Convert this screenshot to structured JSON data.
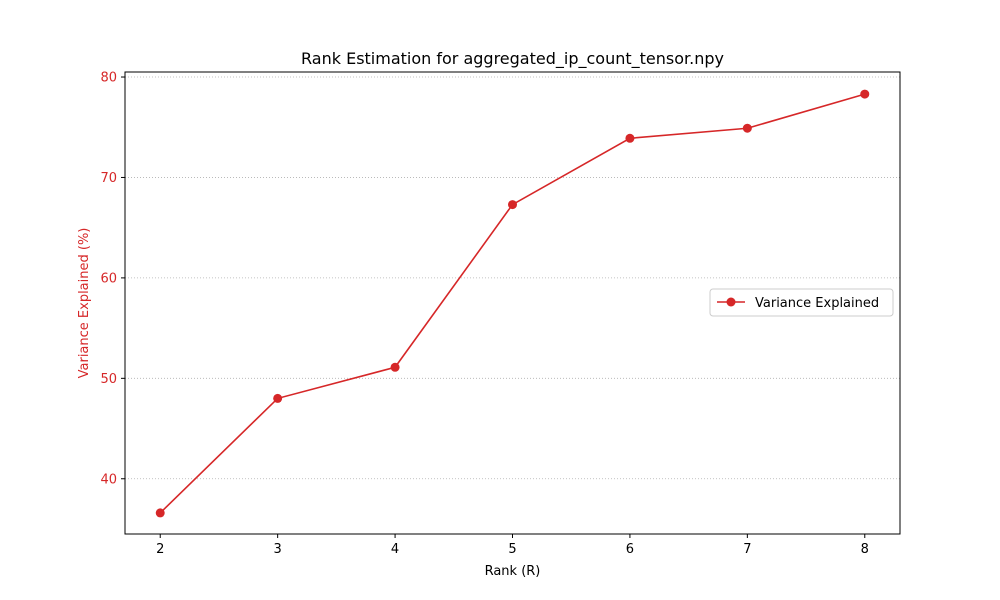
{
  "chart_data": {
    "type": "line",
    "title": "Rank Estimation for aggregated_ip_count_tensor.npy",
    "xlabel": "Rank (R)",
    "ylabel": "Variance Explained (%)",
    "x": [
      2,
      3,
      4,
      5,
      6,
      7,
      8
    ],
    "series": [
      {
        "name": "Variance Explained",
        "values": [
          36.6,
          48.0,
          51.1,
          67.3,
          73.9,
          74.9,
          78.3
        ],
        "color": "#d62728",
        "marker": "circle"
      }
    ],
    "xlim": [
      1.7,
      8.3
    ],
    "ylim": [
      34.5,
      80.5
    ],
    "xticks": [
      2,
      3,
      4,
      5,
      6,
      7,
      8
    ],
    "yticks": [
      40,
      50,
      60,
      70,
      80
    ],
    "y_axis_color": "#d62728",
    "grid": {
      "axis": "y",
      "style": "dotted",
      "color": "#b0b0b0"
    },
    "legend": {
      "position": "center-right"
    }
  }
}
